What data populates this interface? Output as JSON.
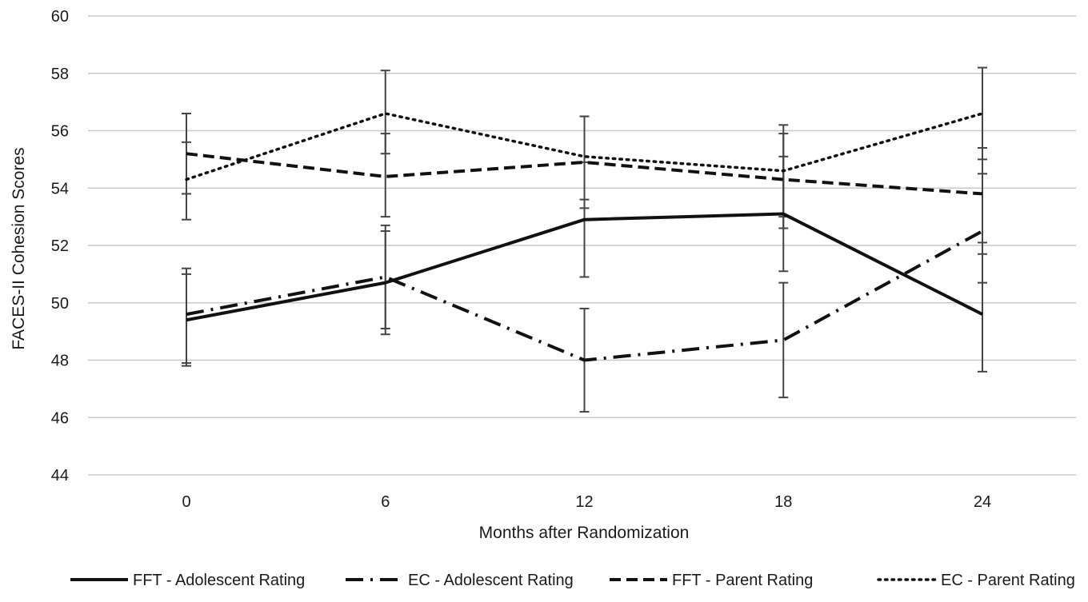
{
  "chart_data": {
    "type": "line",
    "title": "",
    "xlabel": "Months after Randomization",
    "ylabel": "FACES-II Cohesion Scores",
    "x": [
      0,
      6,
      12,
      18,
      24
    ],
    "x_ticks": [
      "0",
      "6",
      "12",
      "18",
      "24"
    ],
    "ylim": [
      44,
      60
    ],
    "y_ticks": [
      "44",
      "46",
      "48",
      "50",
      "52",
      "54",
      "56",
      "58",
      "60"
    ],
    "grid": true,
    "legend_position": "bottom",
    "series": [
      {
        "name": "FFT - Adolescent Rating",
        "style": "solid",
        "values": [
          49.4,
          50.7,
          52.9,
          53.1,
          49.6
        ],
        "error_low": [
          47.8,
          48.9,
          50.9,
          51.1,
          47.6
        ],
        "error_high": [
          51.0,
          52.5,
          54.9,
          55.1,
          51.7
        ]
      },
      {
        "name": "EC - Adolescent Rating",
        "style": "dashdot",
        "values": [
          49.6,
          50.9,
          48.0,
          48.7,
          52.5
        ],
        "error_low": [
          47.9,
          49.1,
          46.2,
          46.7,
          50.7
        ],
        "error_high": [
          51.2,
          52.7,
          49.8,
          50.7,
          54.5
        ]
      },
      {
        "name": "FFT - Parent Rating",
        "style": "dashed",
        "values": [
          55.2,
          54.4,
          54.9,
          54.3,
          53.8
        ],
        "error_low": [
          53.8,
          53.0,
          53.3,
          52.6,
          52.1
        ],
        "error_high": [
          56.6,
          55.9,
          56.5,
          55.9,
          55.4
        ]
      },
      {
        "name": "EC - Parent Rating",
        "style": "dotted",
        "values": [
          54.3,
          56.6,
          55.1,
          54.6,
          56.6
        ],
        "error_low": [
          52.9,
          55.2,
          53.6,
          53.0,
          55.0
        ],
        "error_high": [
          55.6,
          58.1,
          56.5,
          56.2,
          58.2
        ]
      }
    ],
    "colors": {
      "line": "#111111",
      "grid": "#c8c8c8",
      "error_bar": "#444444"
    }
  }
}
